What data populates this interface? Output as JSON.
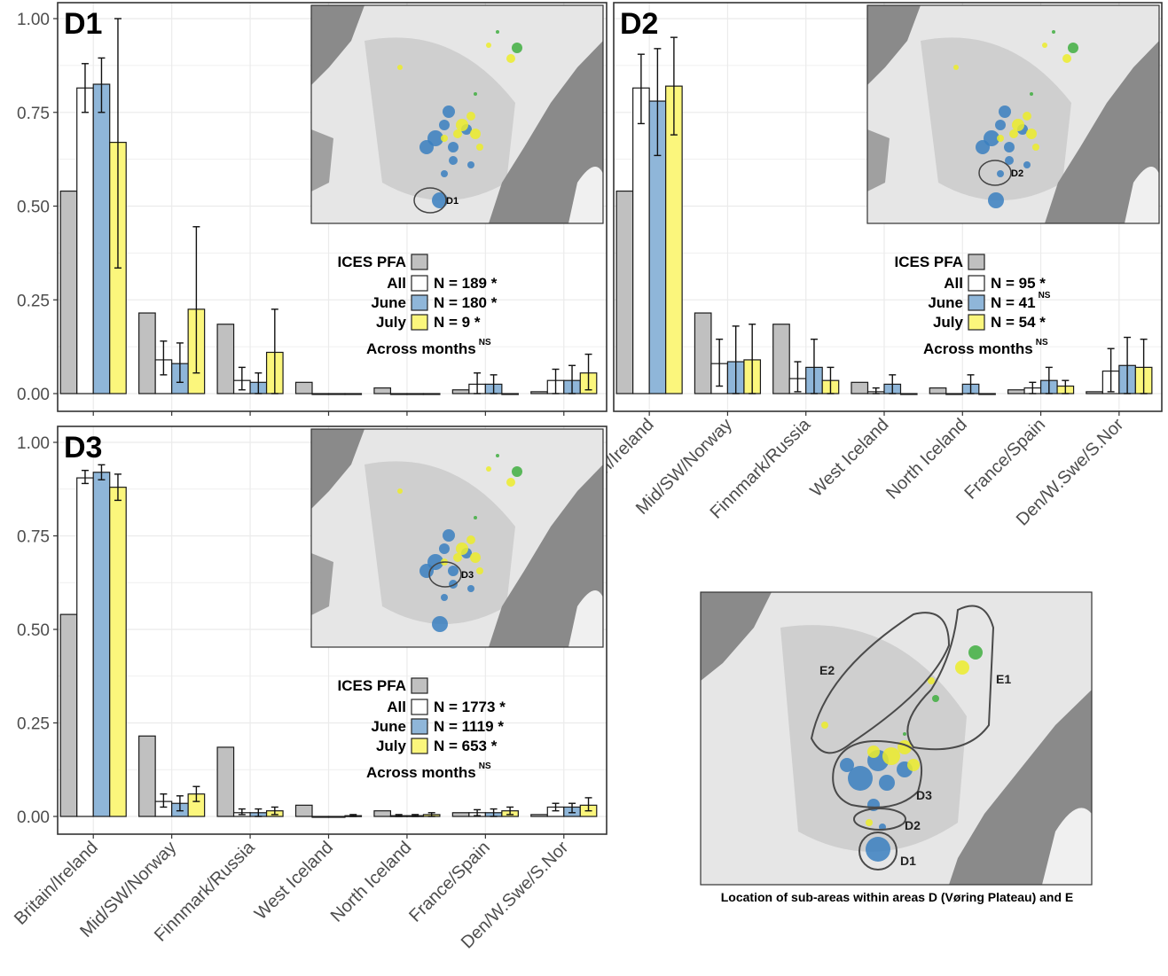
{
  "chart_data": [
    {
      "type": "bar",
      "title": "D1",
      "categories": [
        "Britain/Ireland",
        "Mid/SW/Norway",
        "Finnmark/Russia",
        "West Iceland",
        "North Iceland",
        "France/Spain",
        "Den/W.Swe/S.Nor"
      ],
      "ylim": [
        0,
        1
      ],
      "yticks": [
        "0.00",
        "0.25",
        "0.50",
        "0.75",
        "1.00"
      ],
      "show_x_labels": false,
      "series": [
        {
          "name": "ICES PFA",
          "color": "#c0c0c0",
          "values": [
            0.54,
            0.215,
            0.185,
            0.03,
            0.015,
            0.01,
            0.005
          ],
          "err": null
        },
        {
          "name": "All",
          "color": "#ffffff",
          "values": [
            0.815,
            0.09,
            0.035,
            0.0,
            0.0,
            0.025,
            0.035
          ],
          "err": [
            [
              0.75,
              0.88
            ],
            [
              0.05,
              0.14
            ],
            [
              0.01,
              0.07
            ],
            null,
            null,
            [
              0.0,
              0.055
            ],
            [
              0.0,
              0.065
            ]
          ]
        },
        {
          "name": "June",
          "color": "#8fb6d9",
          "values": [
            0.825,
            0.08,
            0.03,
            0.0,
            0.0,
            0.025,
            0.035
          ],
          "err": [
            [
              0.75,
              0.895
            ],
            [
              0.03,
              0.135
            ],
            [
              0.0,
              0.055
            ],
            null,
            null,
            [
              0.0,
              0.05
            ],
            [
              0.0,
              0.075
            ]
          ]
        },
        {
          "name": "July",
          "color": "#fbf67c",
          "values": [
            0.67,
            0.225,
            0.11,
            0.0,
            0.0,
            0.0,
            0.055
          ],
          "err": [
            [
              0.335,
              1.0
            ],
            [
              0.055,
              0.445
            ],
            [
              0.0,
              0.225
            ],
            null,
            null,
            null,
            [
              0.01,
              0.105
            ]
          ]
        }
      ],
      "legend": {
        "title": "ICES PFA",
        "rows": [
          {
            "label": "All",
            "n": "N = 189 *",
            "sup": ""
          },
          {
            "label": "June",
            "n": "N = 180 *",
            "sup": ""
          },
          {
            "label": "July",
            "n": "N = 9 *",
            "sup": ""
          }
        ],
        "footer": "Across months",
        "footer_sup": "NS"
      },
      "map_label": "D1"
    },
    {
      "type": "bar",
      "title": "D2",
      "categories": [
        "Britain/Ireland",
        "Mid/SW/Norway",
        "Finnmark/Russia",
        "West Iceland",
        "North Iceland",
        "France/Spain",
        "Den/W.Swe/S.Nor"
      ],
      "ylim": [
        0,
        1
      ],
      "yticks": [],
      "show_x_labels": true,
      "series": [
        {
          "name": "ICES PFA",
          "color": "#c0c0c0",
          "values": [
            0.54,
            0.215,
            0.185,
            0.03,
            0.015,
            0.01,
            0.005
          ],
          "err": null
        },
        {
          "name": "All",
          "color": "#ffffff",
          "values": [
            0.815,
            0.08,
            0.04,
            0.005,
            0.0,
            0.015,
            0.06
          ],
          "err": [
            [
              0.72,
              0.905
            ],
            [
              0.02,
              0.145
            ],
            [
              0.005,
              0.085
            ],
            [
              0.0,
              0.015
            ],
            null,
            [
              0.0,
              0.03
            ],
            [
              0.005,
              0.12
            ]
          ]
        },
        {
          "name": "June",
          "color": "#8fb6d9",
          "values": [
            0.78,
            0.085,
            0.07,
            0.025,
            0.025,
            0.035,
            0.075
          ],
          "err": [
            [
              0.635,
              0.92
            ],
            [
              0.0,
              0.18
            ],
            [
              0.0,
              0.145
            ],
            [
              0.0,
              0.05
            ],
            [
              0.0,
              0.05
            ],
            [
              0.0,
              0.07
            ],
            [
              0.0,
              0.15
            ]
          ]
        },
        {
          "name": "July",
          "color": "#fbf67c",
          "values": [
            0.82,
            0.09,
            0.035,
            0.0,
            0.0,
            0.02,
            0.07
          ],
          "err": [
            [
              0.69,
              0.95
            ],
            [
              0.0,
              0.185
            ],
            [
              0.0,
              0.07
            ],
            null,
            null,
            [
              0.0,
              0.035
            ],
            [
              0.0,
              0.145
            ]
          ]
        }
      ],
      "legend": {
        "title": "ICES PFA",
        "rows": [
          {
            "label": "All",
            "n": "N = 95 *",
            "sup": ""
          },
          {
            "label": "June",
            "n": "N = 41",
            "sup": "NS"
          },
          {
            "label": "July",
            "n": "N = 54 *",
            "sup": ""
          }
        ],
        "footer": "Across months",
        "footer_sup": "NS"
      },
      "map_label": "D2"
    },
    {
      "type": "bar",
      "title": "D3",
      "categories": [
        "Britain/Ireland",
        "Mid/SW/Norway",
        "Finnmark/Russia",
        "West Iceland",
        "North Iceland",
        "France/Spain",
        "Den/W.Swe/S.Nor"
      ],
      "ylim": [
        0,
        1
      ],
      "yticks": [
        "0.00",
        "0.25",
        "0.50",
        "0.75",
        "1.00"
      ],
      "show_x_labels": true,
      "series": [
        {
          "name": "ICES PFA",
          "color": "#c0c0c0",
          "values": [
            0.54,
            0.215,
            0.185,
            0.03,
            0.015,
            0.01,
            0.005
          ],
          "err": null
        },
        {
          "name": "All",
          "color": "#ffffff",
          "values": [
            0.905,
            0.04,
            0.01,
            0.0,
            0.002,
            0.01,
            0.025
          ],
          "err": [
            [
              0.89,
              0.925
            ],
            [
              0.025,
              0.06
            ],
            [
              0.005,
              0.02
            ],
            null,
            [
              0.0,
              0.005
            ],
            [
              0.002,
              0.018
            ],
            [
              0.015,
              0.035
            ]
          ]
        },
        {
          "name": "June",
          "color": "#8fb6d9",
          "values": [
            0.92,
            0.035,
            0.01,
            0.0,
            0.002,
            0.01,
            0.025
          ],
          "err": [
            [
              0.9,
              0.94
            ],
            [
              0.015,
              0.055
            ],
            [
              0.0,
              0.02
            ],
            null,
            [
              0.0,
              0.005
            ],
            [
              0.0,
              0.02
            ],
            [
              0.01,
              0.035
            ]
          ]
        },
        {
          "name": "July",
          "color": "#fbf67c",
          "values": [
            0.88,
            0.06,
            0.015,
            0.002,
            0.005,
            0.015,
            0.03
          ],
          "err": [
            [
              0.845,
              0.915
            ],
            [
              0.04,
              0.08
            ],
            [
              0.005,
              0.025
            ],
            [
              0.0,
              0.005
            ],
            [
              0.0,
              0.01
            ],
            [
              0.005,
              0.025
            ],
            [
              0.015,
              0.05
            ]
          ]
        }
      ],
      "legend": {
        "title": "ICES PFA",
        "rows": [
          {
            "label": "All",
            "n": "N = 1773 *",
            "sup": ""
          },
          {
            "label": "June",
            "n": "N = 1119 *",
            "sup": ""
          },
          {
            "label": "July",
            "n": "N = 653 *",
            "sup": ""
          }
        ],
        "footer": "Across months",
        "footer_sup": "NS"
      },
      "map_label": "D3"
    }
  ],
  "overview_map": {
    "labels": [
      "E2",
      "E1",
      "D3",
      "D2",
      "D1"
    ],
    "caption": "Location of sub-areas within areas D (Vøring Plateau) and E"
  },
  "colors": {
    "pfa": "#c0c0c0",
    "all": "#ffffff",
    "june": "#8fb6d9",
    "july": "#fbf67c",
    "map_land": "#8a8a8a",
    "map_sea": "#d9d9d9",
    "dot_blue": "#3a7fc0",
    "dot_yellow": "#ecec2a",
    "dot_green": "#3fae3f"
  }
}
